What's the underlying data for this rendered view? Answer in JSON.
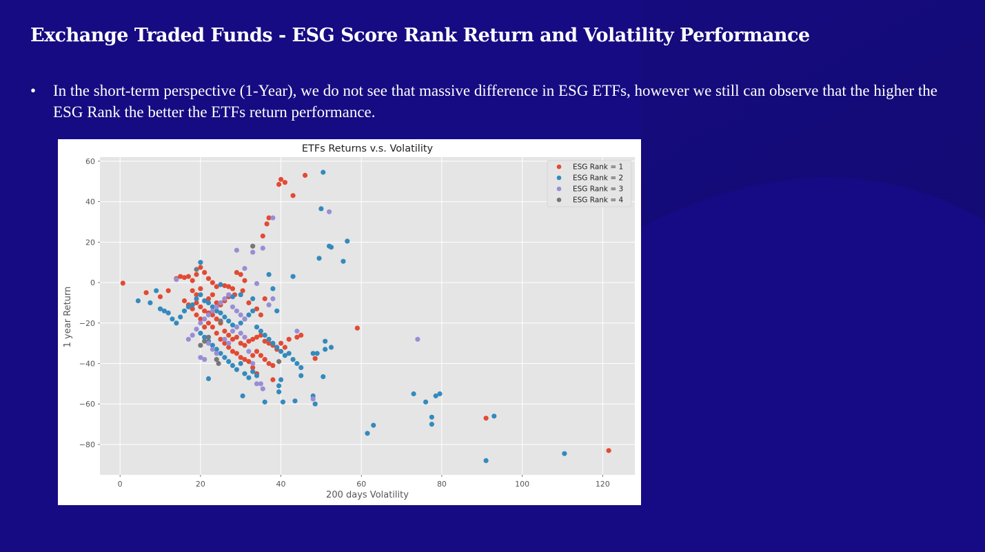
{
  "slide": {
    "title": "Exchange Traded Funds - ESG Score Rank Return and Volatility Performance",
    "bullet_symbol": "•",
    "bullet_text": "In the short-term perspective (1-Year), we do not see that massive difference in ESG ETFs, however we still can observe that the higher the ESG Rank the better the ETFs return performance.",
    "colors": {
      "background": "#150b80",
      "text": "#ffffff"
    }
  },
  "chart_data": {
    "type": "scatter",
    "title": "ETFs Returns v.s. Volatility",
    "xlabel": "200 days Volatility",
    "ylabel": "1 year Return",
    "xlim": [
      -5,
      128
    ],
    "ylim": [
      -95,
      62
    ],
    "xticks": [
      0,
      20,
      40,
      60,
      80,
      100,
      120
    ],
    "yticks": [
      60,
      40,
      20,
      0,
      -20,
      -40,
      -60,
      -80
    ],
    "grid": true,
    "style": "ggplot",
    "legend_position": "upper right",
    "series": [
      {
        "name": "ESG Rank = 1",
        "color": "#e24a33",
        "points": [
          [
            0.7,
            -0.3
          ],
          [
            6.5,
            -5
          ],
          [
            10,
            -7
          ],
          [
            12,
            -4
          ],
          [
            14,
            2
          ],
          [
            15,
            3
          ],
          [
            16,
            2.5
          ],
          [
            17,
            3
          ],
          [
            18,
            1
          ],
          [
            19,
            4
          ],
          [
            20,
            7.5
          ],
          [
            21,
            5
          ],
          [
            22,
            2
          ],
          [
            23,
            0
          ],
          [
            24,
            -2
          ],
          [
            25,
            -1
          ],
          [
            26,
            -1.5
          ],
          [
            27,
            -2
          ],
          [
            28,
            -3
          ],
          [
            29,
            5
          ],
          [
            30,
            4
          ],
          [
            31,
            1
          ],
          [
            30.5,
            -4
          ],
          [
            28.5,
            -6
          ],
          [
            16,
            -9
          ],
          [
            17,
            -11
          ],
          [
            18,
            -13
          ],
          [
            19,
            -10
          ],
          [
            20,
            -12
          ],
          [
            21,
            -14
          ],
          [
            22,
            -15
          ],
          [
            23,
            -16
          ],
          [
            24,
            -18
          ],
          [
            25,
            -20
          ],
          [
            22,
            -20
          ],
          [
            21,
            -22
          ],
          [
            20,
            -18
          ],
          [
            19,
            -16
          ],
          [
            23,
            -22
          ],
          [
            24,
            -25
          ],
          [
            26,
            -24
          ],
          [
            27,
            -26
          ],
          [
            28,
            -28
          ],
          [
            29,
            -27
          ],
          [
            30,
            -30
          ],
          [
            31,
            -31
          ],
          [
            32,
            -29
          ],
          [
            33,
            -28
          ],
          [
            34,
            -27
          ],
          [
            35,
            -26
          ],
          [
            36,
            -29
          ],
          [
            37,
            -30
          ],
          [
            38,
            -31
          ],
          [
            39,
            -33
          ],
          [
            40,
            -30
          ],
          [
            41,
            -32
          ],
          [
            42,
            -28
          ],
          [
            44,
            -27
          ],
          [
            45,
            -26
          ],
          [
            34,
            -34
          ],
          [
            35,
            -36
          ],
          [
            36,
            -38
          ],
          [
            37,
            -40
          ],
          [
            38,
            -41
          ],
          [
            33,
            -42
          ],
          [
            34,
            -45
          ],
          [
            38,
            -48
          ],
          [
            35,
            -16
          ],
          [
            36,
            -8
          ],
          [
            34,
            -13
          ],
          [
            32,
            -10
          ],
          [
            25,
            -28
          ],
          [
            26,
            -30
          ],
          [
            27,
            -32
          ],
          [
            28,
            -34
          ],
          [
            29,
            -35
          ],
          [
            30,
            -37
          ],
          [
            31,
            -38
          ],
          [
            32,
            -39
          ],
          [
            33,
            -36
          ],
          [
            22,
            -8
          ],
          [
            23,
            -6
          ],
          [
            24,
            -10
          ],
          [
            25,
            -11
          ],
          [
            26,
            -9
          ],
          [
            27,
            -7
          ],
          [
            18,
            -4
          ],
          [
            19,
            -6
          ],
          [
            20,
            -3
          ],
          [
            35.5,
            23
          ],
          [
            36.5,
            29
          ],
          [
            37,
            32
          ],
          [
            39.5,
            48.5
          ],
          [
            40,
            51
          ],
          [
            41,
            49.5
          ],
          [
            43,
            43
          ],
          [
            46,
            53
          ],
          [
            59,
            -22.5
          ],
          [
            48.5,
            -37.5
          ],
          [
            91,
            -67
          ],
          [
            121.5,
            -83
          ]
        ]
      },
      {
        "name": "ESG Rank = 2",
        "color": "#348abd",
        "points": [
          [
            4.5,
            -9
          ],
          [
            7.5,
            -10
          ],
          [
            9,
            -4
          ],
          [
            10,
            -13
          ],
          [
            11,
            -14
          ],
          [
            12,
            -15
          ],
          [
            13,
            -18
          ],
          [
            14,
            -20
          ],
          [
            15,
            -17
          ],
          [
            16,
            -14
          ],
          [
            17,
            -12
          ],
          [
            18,
            -11
          ],
          [
            19,
            -8
          ],
          [
            20,
            -6
          ],
          [
            21,
            -9
          ],
          [
            22,
            -10
          ],
          [
            23,
            -12
          ],
          [
            24,
            -14
          ],
          [
            25,
            -15
          ],
          [
            26,
            -17
          ],
          [
            27,
            -19
          ],
          [
            28,
            -21
          ],
          [
            29,
            -22
          ],
          [
            30,
            -20
          ],
          [
            31,
            -18
          ],
          [
            32,
            -16
          ],
          [
            33,
            -14
          ],
          [
            34,
            -22
          ],
          [
            35,
            -24
          ],
          [
            36,
            -26
          ],
          [
            37,
            -28
          ],
          [
            38,
            -30
          ],
          [
            39,
            -32
          ],
          [
            40,
            -34
          ],
          [
            41,
            -36
          ],
          [
            42,
            -35
          ],
          [
            43,
            -38
          ],
          [
            44,
            -40
          ],
          [
            45,
            -42
          ],
          [
            20,
            -25
          ],
          [
            21,
            -27
          ],
          [
            22,
            -29
          ],
          [
            23,
            -31
          ],
          [
            24,
            -33
          ],
          [
            25,
            -35
          ],
          [
            26,
            -37
          ],
          [
            27,
            -39
          ],
          [
            28,
            -41
          ],
          [
            29,
            -43
          ],
          [
            30,
            -40
          ],
          [
            31,
            -45
          ],
          [
            32,
            -47
          ],
          [
            33,
            -44
          ],
          [
            34,
            -46
          ],
          [
            20,
            10
          ],
          [
            25,
            -1
          ],
          [
            28,
            -7
          ],
          [
            30,
            -6
          ],
          [
            33,
            -8
          ],
          [
            38,
            -3
          ],
          [
            39,
            -14
          ],
          [
            22,
            -47.5
          ],
          [
            30.5,
            -56
          ],
          [
            36,
            -59
          ],
          [
            40.5,
            -59
          ],
          [
            43.5,
            -58.5
          ],
          [
            39.5,
            -54
          ],
          [
            39.5,
            -51
          ],
          [
            40,
            -48
          ],
          [
            45,
            -46
          ],
          [
            48,
            -56
          ],
          [
            48.5,
            -60
          ],
          [
            50.5,
            -46.5
          ],
          [
            48,
            -35
          ],
          [
            49,
            -35
          ],
          [
            51,
            -29
          ],
          [
            51,
            -33
          ],
          [
            52.5,
            -32
          ],
          [
            37,
            4
          ],
          [
            43,
            3
          ],
          [
            49.5,
            12
          ],
          [
            52,
            18
          ],
          [
            52.5,
            17.5
          ],
          [
            55.5,
            10.5
          ],
          [
            56.5,
            20.5
          ],
          [
            50,
            36.5
          ],
          [
            50.5,
            54.5
          ],
          [
            61.5,
            -74.5
          ],
          [
            63,
            -70.5
          ],
          [
            73,
            -55
          ],
          [
            76,
            -59
          ],
          [
            77.5,
            -66.5
          ],
          [
            77.5,
            -70
          ],
          [
            78.5,
            -56
          ],
          [
            79.5,
            -55
          ],
          [
            91,
            -88
          ],
          [
            93,
            -66
          ],
          [
            110.5,
            -84.5
          ]
        ]
      },
      {
        "name": "ESG Rank = 3",
        "color": "#988ed5",
        "points": [
          [
            14,
            1.5
          ],
          [
            17,
            -28
          ],
          [
            18,
            -26
          ],
          [
            19,
            -23
          ],
          [
            20,
            -20
          ],
          [
            21,
            -18
          ],
          [
            22,
            -16
          ],
          [
            23,
            -14
          ],
          [
            24,
            -12
          ],
          [
            25,
            -10
          ],
          [
            26,
            -8
          ],
          [
            27,
            -6
          ],
          [
            28,
            -12
          ],
          [
            29,
            -14
          ],
          [
            30,
            -16
          ],
          [
            31,
            -18
          ],
          [
            22,
            -30
          ],
          [
            23,
            -33
          ],
          [
            24,
            -35
          ],
          [
            20,
            -37
          ],
          [
            21,
            -38
          ],
          [
            26,
            -28
          ],
          [
            27,
            -30
          ],
          [
            28,
            -24
          ],
          [
            29,
            -22
          ],
          [
            30,
            -25
          ],
          [
            31,
            -27
          ],
          [
            32,
            -34
          ],
          [
            33,
            -40
          ],
          [
            34,
            -50
          ],
          [
            35,
            -50
          ],
          [
            35.5,
            -52.5
          ],
          [
            29,
            16
          ],
          [
            31,
            7
          ],
          [
            34,
            -0.5
          ],
          [
            33,
            15
          ],
          [
            35.5,
            17
          ],
          [
            37,
            -11
          ],
          [
            38,
            -8
          ],
          [
            38,
            32
          ],
          [
            44,
            -24
          ],
          [
            48,
            -57.5
          ],
          [
            52,
            35
          ],
          [
            74,
            -28
          ]
        ]
      },
      {
        "name": "ESG Rank = 4",
        "color": "#777777",
        "points": [
          [
            19,
            6.5
          ],
          [
            20,
            -31
          ],
          [
            21,
            -29
          ],
          [
            22,
            -27
          ],
          [
            24,
            -38
          ],
          [
            24.5,
            -40
          ],
          [
            25,
            -19
          ],
          [
            33,
            18
          ],
          [
            39.5,
            -39
          ]
        ]
      }
    ]
  }
}
